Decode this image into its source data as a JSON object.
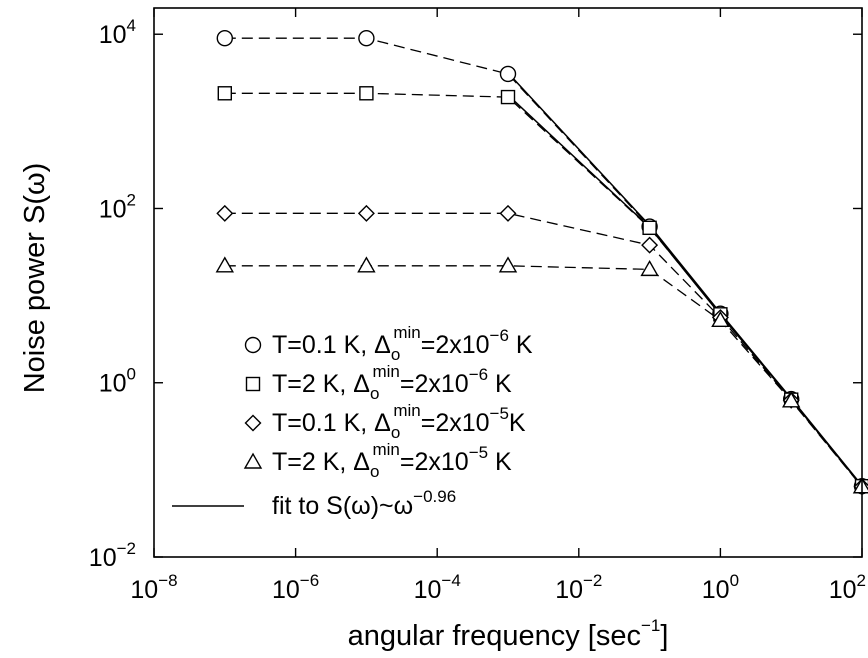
{
  "chart_data": {
    "type": "line",
    "scale": {
      "x": "log",
      "y": "log"
    },
    "xlabel": "angular frequency [sec",
    "xlabel_sup": "−1",
    "xlabel_end": "]",
    "ylabel": "Noise power S(ω)",
    "xlim": [
      1e-08,
      100
    ],
    "ylim": [
      0.01,
      20000
    ],
    "x_ticks": [
      {
        "base": "10",
        "exp": "−8",
        "value": 1e-08
      },
      {
        "base": "10",
        "exp": "−6",
        "value": 1e-06
      },
      {
        "base": "10",
        "exp": "−4",
        "value": 0.0001
      },
      {
        "base": "10",
        "exp": "−2",
        "value": 0.01
      },
      {
        "base": "10",
        "exp": "0",
        "value": 1
      },
      {
        "base": "10",
        "exp": "2",
        "value": 100
      }
    ],
    "y_ticks": [
      {
        "base": "10",
        "exp": "−2",
        "value": 0.01
      },
      {
        "base": "10",
        "exp": "0",
        "value": 1
      },
      {
        "base": "10",
        "exp": "2",
        "value": 100
      },
      {
        "base": "10",
        "exp": "4",
        "value": 10000
      }
    ],
    "grid": false,
    "legend_position": "lower-left",
    "series": [
      {
        "key": "circle",
        "marker": "circle",
        "label": {
          "a": "T=0.1 K, Δ",
          "sub": "o",
          "sup": "min",
          "b": "=2x10",
          "exp": "−6",
          "c": " K"
        },
        "x": [
          1e-07,
          1e-05,
          0.001,
          0.1,
          1,
          10,
          100
        ],
        "y": [
          9000,
          9000,
          3500,
          62,
          6.2,
          0.65,
          0.065
        ]
      },
      {
        "key": "square",
        "marker": "square",
        "label": {
          "a": "T=2 K, Δ",
          "sub": "o",
          "sup": "min",
          "b": "=2x10",
          "exp": "−6",
          "c": " K"
        },
        "x": [
          1e-07,
          1e-05,
          0.001,
          0.1,
          1,
          10,
          100
        ],
        "y": [
          2100,
          2100,
          1900,
          60,
          6.1,
          0.64,
          0.065
        ]
      },
      {
        "key": "diamond",
        "marker": "diamond",
        "label": {
          "a": "T=0.1 K, Δ",
          "sub": "o",
          "sup": "min",
          "b": "=2x10",
          "exp": "−5",
          "c": "K"
        },
        "x": [
          1e-07,
          1e-05,
          0.001,
          0.1,
          1,
          10,
          100
        ],
        "y": [
          88,
          88,
          88,
          38,
          5.6,
          0.63,
          0.064
        ]
      },
      {
        "key": "triangle",
        "marker": "triangle",
        "label": {
          "a": "T=2 K, Δ",
          "sub": "o",
          "sup": "min",
          "b": "=2x10",
          "exp": "−5",
          "c": " K"
        },
        "x": [
          1e-07,
          1e-05,
          0.001,
          0.1,
          1,
          10,
          100
        ],
        "y": [
          22,
          22,
          22,
          20,
          5.2,
          0.62,
          0.064
        ]
      }
    ],
    "fit": {
      "label": "fit to S(ω)~ω",
      "exp": "−0.96",
      "exponent": -0.96,
      "x": [
        0.001,
        0.1,
        1,
        10,
        100
      ],
      "ys_circle": [
        3600,
        64,
        6.3,
        0.66,
        0.066
      ],
      "ys_square": [
        2000,
        61,
        6.0,
        0.65,
        0.065
      ]
    }
  }
}
